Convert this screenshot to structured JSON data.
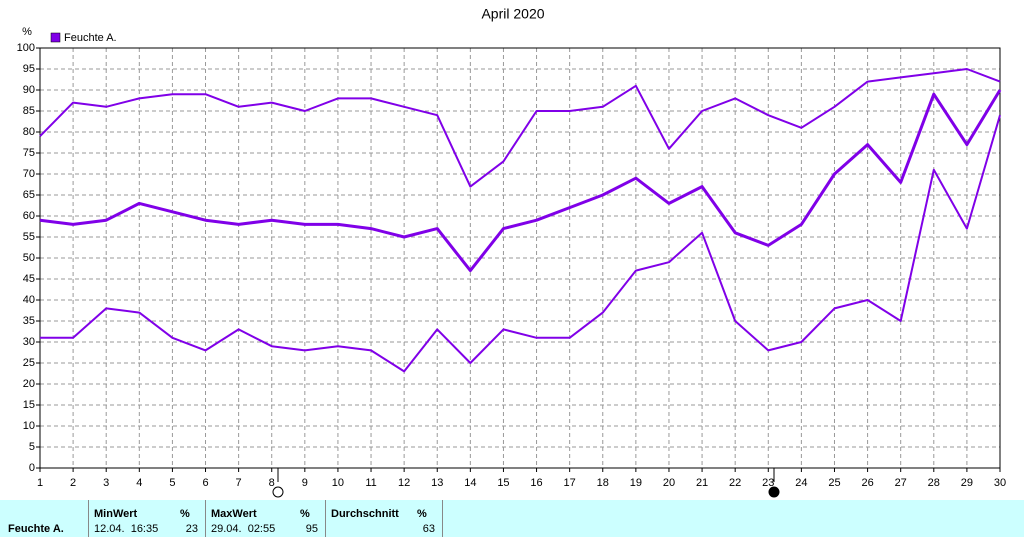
{
  "chart_data": {
    "type": "line",
    "title": "April 2020",
    "y_label": "%",
    "x": [
      1,
      2,
      3,
      4,
      5,
      6,
      7,
      8,
      9,
      10,
      11,
      12,
      13,
      14,
      15,
      16,
      17,
      18,
      19,
      20,
      21,
      22,
      23,
      24,
      25,
      26,
      27,
      28,
      29,
      30
    ],
    "series": [
      {
        "name": "Feuchte A.",
        "color": "#8000e8",
        "values": [
          59,
          58,
          59,
          63,
          61,
          59,
          58,
          59,
          58,
          58,
          57,
          55,
          57,
          47,
          57,
          59,
          62,
          65,
          69,
          63,
          67,
          56,
          53,
          58,
          70,
          77,
          68,
          89,
          77,
          90
        ],
        "max": [
          79,
          87,
          86,
          88,
          89,
          89,
          86,
          87,
          85,
          88,
          88,
          86,
          84,
          67,
          73,
          85,
          85,
          86,
          91,
          76,
          85,
          88,
          84,
          81,
          86,
          92,
          93,
          94,
          95,
          92
        ],
        "min": [
          31,
          31,
          38,
          37,
          31,
          28,
          33,
          29,
          28,
          29,
          28,
          23,
          33,
          25,
          33,
          31,
          31,
          37,
          47,
          49,
          56,
          35,
          28,
          30,
          38,
          40,
          35,
          71,
          57,
          84
        ]
      }
    ],
    "xlim": [
      1,
      30
    ],
    "xticks": [
      1,
      2,
      3,
      4,
      5,
      6,
      7,
      8,
      9,
      10,
      11,
      12,
      13,
      14,
      15,
      16,
      17,
      18,
      19,
      20,
      21,
      22,
      23,
      24,
      25,
      26,
      27,
      28,
      29,
      30
    ],
    "ylim": [
      0,
      100
    ],
    "yticks": [
      0,
      5,
      10,
      15,
      20,
      25,
      30,
      35,
      40,
      45,
      50,
      55,
      60,
      65,
      70,
      75,
      80,
      85,
      90,
      95,
      100
    ],
    "grid": true,
    "legend": "top-left"
  },
  "stats": {
    "row_label": "Feuchte A.",
    "columns": [
      {
        "header": "MinWert",
        "unit": "%",
        "time": "12.04.  16:35",
        "value": 23
      },
      {
        "header": "MaxWert",
        "unit": "%",
        "time": "29.04.  02:55",
        "value": 95
      },
      {
        "header": "Durchschnitt",
        "unit": "%",
        "value": 63
      }
    ]
  }
}
